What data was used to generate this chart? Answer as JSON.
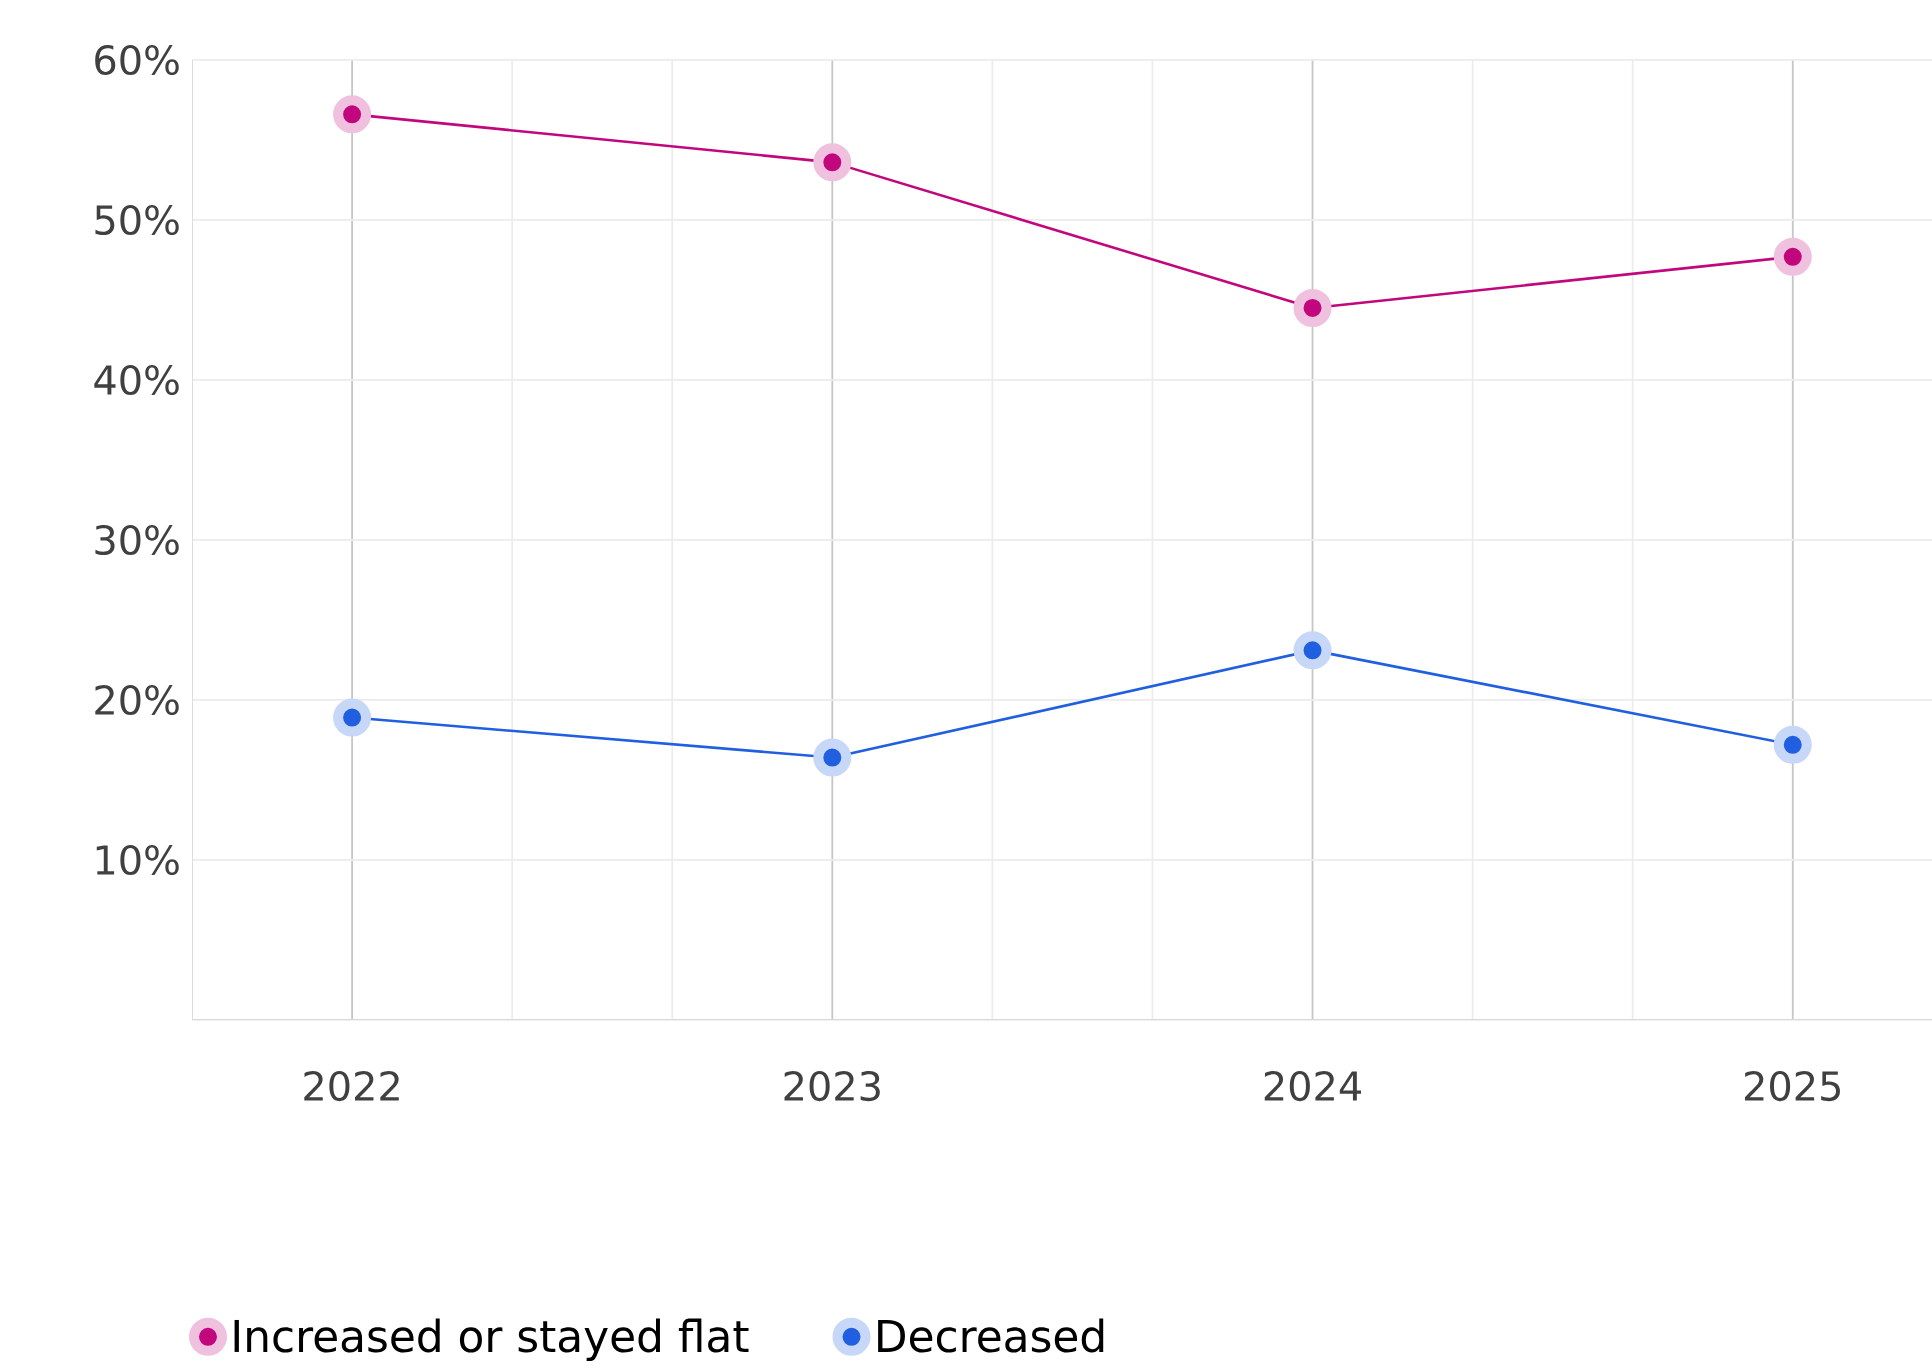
{
  "chart_data": {
    "type": "line",
    "categories": [
      "2022",
      "2023",
      "2024",
      "2025"
    ],
    "series": [
      {
        "name": "Increased or stayed flat",
        "color": "#c2077e",
        "values": [
          56.6,
          53.6,
          44.5,
          47.7
        ]
      },
      {
        "name": "Decreased",
        "color": "#1f5fe0",
        "values": [
          18.9,
          16.4,
          23.1,
          17.2
        ]
      }
    ],
    "ylim": [
      0,
      60
    ],
    "yticks": [
      {
        "value": 0,
        "label": null
      },
      {
        "value": 10,
        "label": "10%"
      },
      {
        "value": 20,
        "label": "20%"
      },
      {
        "value": 30,
        "label": "30%"
      },
      {
        "value": 40,
        "label": "40%"
      },
      {
        "value": 50,
        "label": "50%"
      },
      {
        "value": 60,
        "label": "60%"
      }
    ],
    "grid": true,
    "legend": "bottom",
    "marker": "circle",
    "line_style": "solid"
  }
}
